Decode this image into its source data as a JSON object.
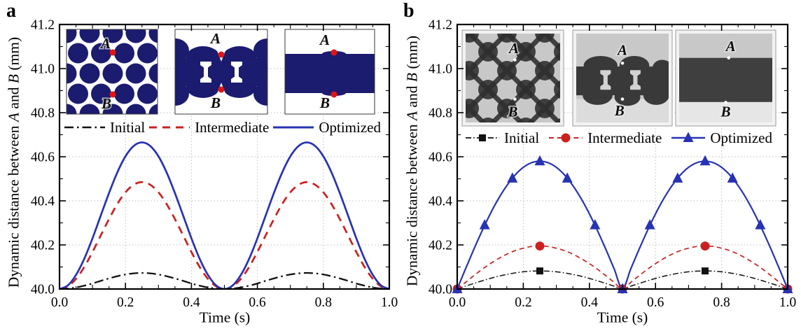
{
  "figure": {
    "panels": [
      {
        "tag": "a",
        "ylabel_parts": [
          {
            "text": "Dynamic distance between "
          },
          {
            "text": "A",
            "italic": true
          },
          {
            "text": " and "
          },
          {
            "text": "B",
            "italic": true
          },
          {
            "text": " (mm)"
          }
        ],
        "insets": [
          {
            "kind": "simulation-initial",
            "point_labels": [
              "A",
              "B"
            ]
          },
          {
            "kind": "simulation-intermediate",
            "point_labels": [
              "A",
              "B"
            ]
          },
          {
            "kind": "simulation-optimized",
            "point_labels": [
              "A",
              "B"
            ]
          }
        ]
      },
      {
        "tag": "b",
        "ylabel_parts": [
          {
            "text": "Dynamic distance between "
          },
          {
            "text": "A",
            "italic": true
          },
          {
            "text": " and "
          },
          {
            "text": "B",
            "italic": true
          },
          {
            "text": " (mm)"
          }
        ],
        "insets": [
          {
            "kind": "photo-initial",
            "point_labels": [
              "A",
              "B"
            ]
          },
          {
            "kind": "photo-intermediate",
            "point_labels": [
              "A",
              "B"
            ]
          },
          {
            "kind": "photo-optimized",
            "point_labels": [
              "A",
              "B"
            ]
          }
        ]
      }
    ],
    "colors": {
      "navy": "#1b1b6f",
      "blue": "#2733b3",
      "red": "#cc2020",
      "black": "#111111",
      "red_dot": "#e01515",
      "grid": "#bcbcbc",
      "photo_dark": "#2d2d2d"
    }
  },
  "chart_data": [
    {
      "type": "line",
      "panel": "a",
      "title": "",
      "xlabel": "Time (s)",
      "ylabel": "Dynamic distance between A and B (mm)",
      "xlim": [
        0.0,
        1.0
      ],
      "ylim": [
        40.0,
        41.2
      ],
      "xticks": [
        0.0,
        0.2,
        0.4,
        0.6,
        0.8,
        1.0
      ],
      "xtick_labels": [
        "0.0",
        "0.2",
        "0.4",
        "0.6",
        "0.8",
        "1.0"
      ],
      "yticks": [
        40.0,
        40.2,
        40.4,
        40.6,
        40.8,
        41.0,
        41.2
      ],
      "ytick_labels": [
        "40.0",
        "40.2",
        "40.4",
        "40.6",
        "40.8",
        "41.0",
        "41.2"
      ],
      "grid": true,
      "legend_position": "top-inside",
      "x": [
        0,
        0.025,
        0.05,
        0.075,
        0.1,
        0.125,
        0.15,
        0.175,
        0.2,
        0.225,
        0.25,
        0.275,
        0.3,
        0.325,
        0.35,
        0.375,
        0.4,
        0.425,
        0.45,
        0.475,
        0.5,
        0.525,
        0.55,
        0.575,
        0.6,
        0.625,
        0.65,
        0.675,
        0.7,
        0.725,
        0.75,
        0.775,
        0.8,
        0.825,
        0.85,
        0.875,
        0.9,
        0.925,
        0.95,
        0.975,
        1
      ],
      "series": [
        {
          "name": "Initial",
          "color": "#111111",
          "linestyle": "dashdot",
          "linewidth": 2.3,
          "marker": "none",
          "y": [
            40,
            40.002,
            40.007,
            40.015,
            40.025,
            40.037,
            40.048,
            40.058,
            40.066,
            40.071,
            40.073,
            40.071,
            40.066,
            40.058,
            40.048,
            40.037,
            40.025,
            40.015,
            40.007,
            40.002,
            40,
            40.002,
            40.007,
            40.015,
            40.025,
            40.037,
            40.048,
            40.058,
            40.066,
            40.071,
            40.073,
            40.071,
            40.066,
            40.058,
            40.048,
            40.037,
            40.025,
            40.015,
            40.007,
            40.002,
            40
          ]
        },
        {
          "name": "Intermediate",
          "color": "#cc2020",
          "linestyle": "dashed",
          "linewidth": 2.7,
          "marker": "none",
          "y": [
            40,
            40.012,
            40.046,
            40.1,
            40.168,
            40.243,
            40.317,
            40.385,
            40.439,
            40.473,
            40.485,
            40.473,
            40.439,
            40.385,
            40.317,
            40.243,
            40.168,
            40.1,
            40.046,
            40.012,
            40,
            40.012,
            40.046,
            40.1,
            40.168,
            40.243,
            40.317,
            40.385,
            40.439,
            40.473,
            40.485,
            40.473,
            40.439,
            40.385,
            40.317,
            40.243,
            40.168,
            40.1,
            40.046,
            40.012,
            40
          ]
        },
        {
          "name": "Optimized",
          "color": "#2733b3",
          "linestyle": "solid",
          "linewidth": 2.7,
          "marker": "none",
          "y": [
            40,
            40.016,
            40.064,
            40.137,
            40.23,
            40.333,
            40.435,
            40.528,
            40.602,
            40.649,
            40.665,
            40.649,
            40.602,
            40.528,
            40.435,
            40.333,
            40.23,
            40.137,
            40.064,
            40.016,
            40,
            40.016,
            40.064,
            40.137,
            40.23,
            40.333,
            40.435,
            40.528,
            40.602,
            40.649,
            40.665,
            40.649,
            40.602,
            40.528,
            40.435,
            40.333,
            40.23,
            40.137,
            40.064,
            40.016,
            40
          ]
        }
      ]
    },
    {
      "type": "line",
      "panel": "b",
      "title": "",
      "xlabel": "Time (s)",
      "ylabel": "Dynamic distance between A and B (mm)",
      "xlim": [
        0.0,
        1.0
      ],
      "ylim": [
        40.0,
        41.2
      ],
      "xticks": [
        0.0,
        0.2,
        0.4,
        0.6,
        0.8,
        1.0
      ],
      "xtick_labels": [
        "0.0",
        "0.2",
        "0.4",
        "0.6",
        "0.8",
        "1.0"
      ],
      "yticks": [
        40.0,
        40.2,
        40.4,
        40.6,
        40.8,
        41.0,
        41.2
      ],
      "ytick_labels": [
        "40.0",
        "40.2",
        "40.4",
        "40.6",
        "40.8",
        "41.0",
        "41.2"
      ],
      "grid": true,
      "legend_position": "top-inside",
      "x": [
        0,
        0.025,
        0.05,
        0.075,
        0.1,
        0.125,
        0.15,
        0.175,
        0.2,
        0.225,
        0.25,
        0.275,
        0.3,
        0.325,
        0.35,
        0.375,
        0.4,
        0.425,
        0.45,
        0.475,
        0.5,
        0.525,
        0.55,
        0.575,
        0.6,
        0.625,
        0.65,
        0.675,
        0.7,
        0.725,
        0.75,
        0.775,
        0.8,
        0.825,
        0.85,
        0.875,
        0.9,
        0.925,
        0.95,
        0.975,
        1
      ],
      "series": [
        {
          "name": "Initial",
          "color": "#111111",
          "linestyle": "dashdot",
          "linewidth": 1.5,
          "marker": "square",
          "marker_size": 11,
          "marker_x": [
            0,
            0.25,
            0.5,
            0.75,
            1.0
          ],
          "marker_y": [
            40.0,
            40.082,
            40.0,
            40.082,
            40.0
          ],
          "y": [
            40,
            40.013,
            40.025,
            40.037,
            40.048,
            40.058,
            40.066,
            40.073,
            40.078,
            40.081,
            40.082,
            40.081,
            40.078,
            40.073,
            40.066,
            40.058,
            40.048,
            40.037,
            40.025,
            40.013,
            40,
            40.013,
            40.025,
            40.037,
            40.048,
            40.058,
            40.066,
            40.073,
            40.078,
            40.081,
            40.082,
            40.081,
            40.078,
            40.073,
            40.066,
            40.058,
            40.048,
            40.037,
            40.025,
            40.013,
            40
          ]
        },
        {
          "name": "Intermediate",
          "color": "#cc2020",
          "linestyle": "dashed",
          "linewidth": 1.7,
          "marker": "circle",
          "marker_size": 13,
          "marker_x": [
            0,
            0.25,
            0.5,
            0.75,
            1.0
          ],
          "marker_y": [
            40.0,
            40.195,
            40.0,
            40.195,
            40.0
          ],
          "y": [
            40,
            40.03,
            40.06,
            40.089,
            40.115,
            40.138,
            40.158,
            40.174,
            40.185,
            40.193,
            40.195,
            40.193,
            40.185,
            40.174,
            40.158,
            40.138,
            40.115,
            40.089,
            40.06,
            40.03,
            40,
            40.03,
            40.06,
            40.089,
            40.115,
            40.138,
            40.158,
            40.174,
            40.185,
            40.193,
            40.195,
            40.193,
            40.185,
            40.174,
            40.158,
            40.138,
            40.115,
            40.089,
            40.06,
            40.03,
            40
          ]
        },
        {
          "name": "Optimized",
          "color": "#2733b3",
          "linestyle": "solid",
          "linewidth": 2.2,
          "marker": "triangle",
          "marker_size": 15,
          "marker_x": [
            0,
            0.083,
            0.167,
            0.25,
            0.333,
            0.417,
            0.5,
            0.583,
            0.667,
            0.75,
            0.833,
            0.917,
            1.0
          ],
          "marker_y": [
            40.0,
            40.29,
            40.502,
            40.58,
            40.502,
            40.29,
            40.0,
            40.29,
            40.502,
            40.58,
            40.502,
            40.29,
            40.0
          ],
          "y": [
            40,
            40.091,
            40.179,
            40.263,
            40.341,
            40.41,
            40.469,
            40.517,
            40.552,
            40.573,
            40.58,
            40.573,
            40.552,
            40.517,
            40.469,
            40.41,
            40.341,
            40.263,
            40.179,
            40.091,
            40,
            40.091,
            40.179,
            40.263,
            40.341,
            40.41,
            40.469,
            40.517,
            40.552,
            40.573,
            40.58,
            40.573,
            40.552,
            40.517,
            40.469,
            40.41,
            40.341,
            40.263,
            40.179,
            40.091,
            40
          ]
        }
      ]
    }
  ]
}
